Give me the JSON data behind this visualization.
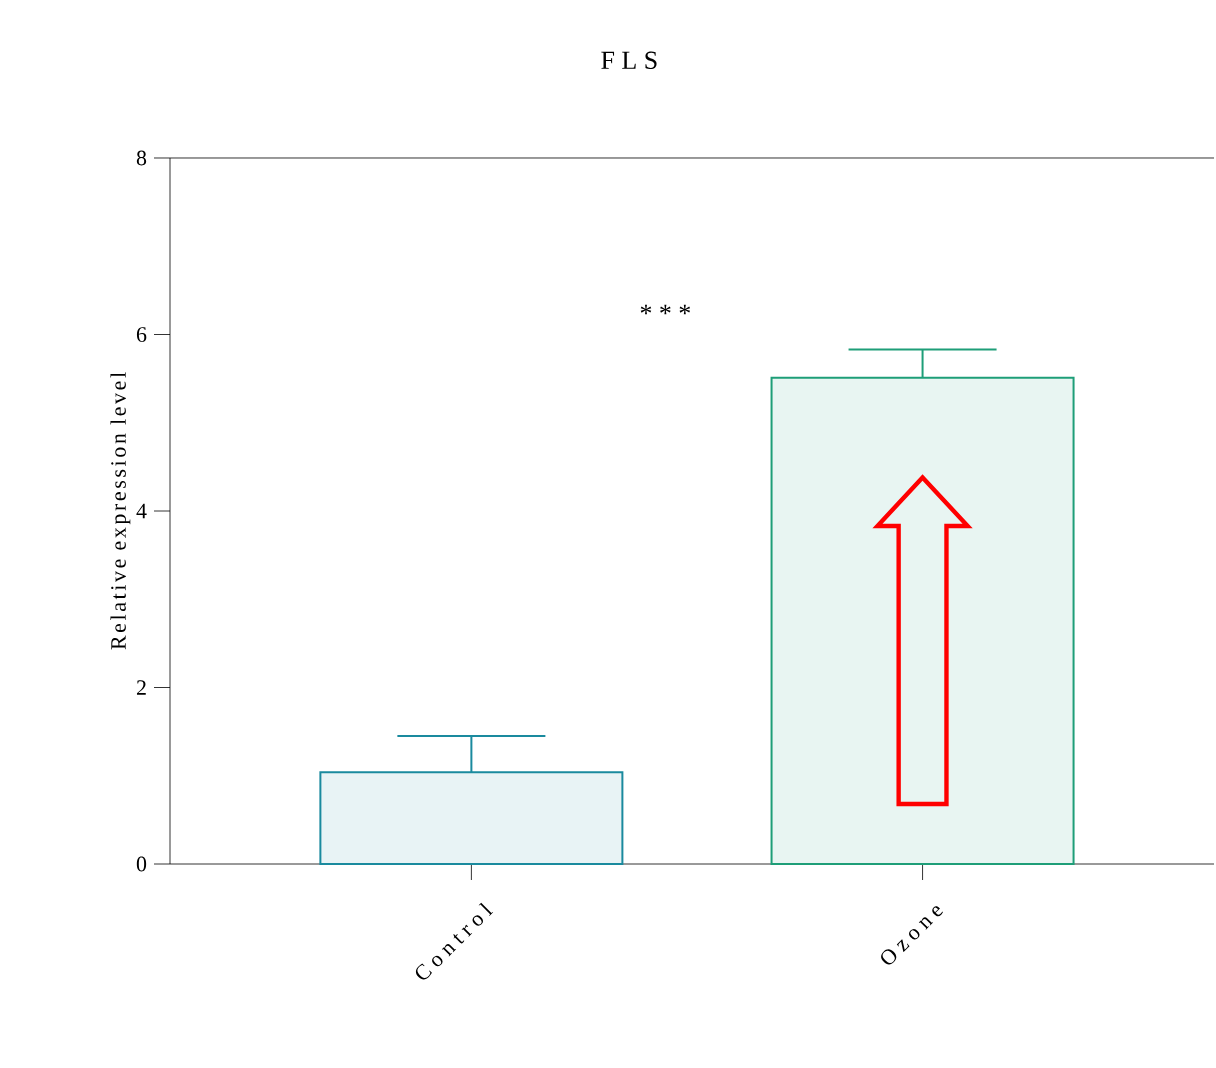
{
  "chart_data": {
    "type": "bar",
    "title": "F L S",
    "ylabel": "Relative expression level",
    "categories": [
      "C o n t r o l",
      "O z o n e"
    ],
    "values": [
      1.04,
      5.51
    ],
    "colors": [
      "#1a8a9e",
      "#1e9e78"
    ],
    "errors": [
      [
        1.04,
        1.45
      ],
      [
        5.51,
        5.83
      ]
    ],
    "ylim": [
      0,
      8
    ],
    "yticks": [
      0,
      2,
      4,
      6,
      8
    ],
    "annotations": [
      "* * *"
    ]
  }
}
